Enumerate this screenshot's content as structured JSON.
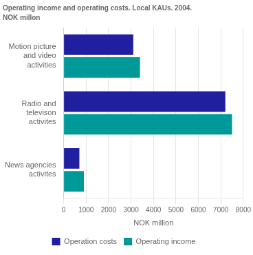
{
  "chart_data": {
    "type": "bar",
    "orientation": "horizontal",
    "title": "Operating income and operating costs. Local KAUs. 2004.",
    "subtitle": "NOK millon",
    "categories": [
      "News agencies\nactivites",
      "Radio and\ntelevison\nactivites",
      "Motion picture\nand video\nactivities"
    ],
    "series": [
      {
        "name": "Operation costs",
        "color": "#1f1f9f",
        "values": [
          700,
          7200,
          3100
        ]
      },
      {
        "name": "Operating income",
        "color": "#009999",
        "values": [
          900,
          7500,
          3400
        ]
      }
    ],
    "xlabel": "NOK million",
    "xlim": [
      0,
      8000
    ],
    "xticks": [
      0,
      1000,
      2000,
      3000,
      4000,
      5000,
      6000,
      7000,
      8000
    ],
    "grid": true,
    "legend": "bottom"
  }
}
